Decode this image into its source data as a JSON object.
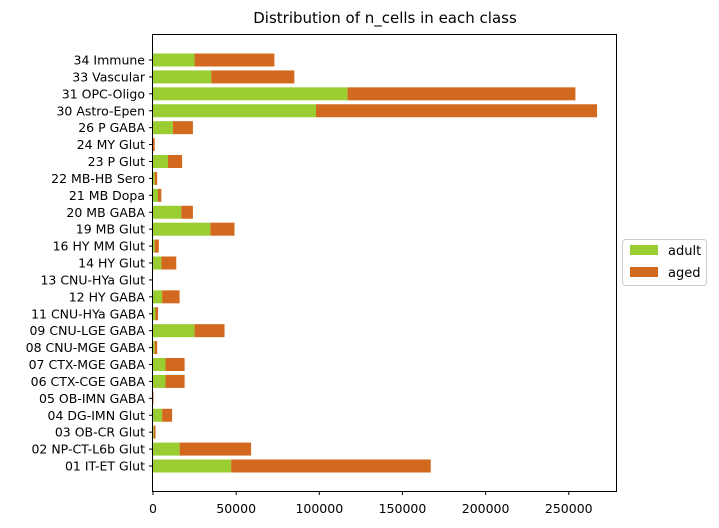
{
  "chart_data": {
    "type": "bar",
    "orientation": "horizontal",
    "stacked": true,
    "title": "Distribution of n_cells in each class",
    "xlabel": "",
    "ylabel": "",
    "xlim": [
      0,
      279000
    ],
    "xticks": [
      0,
      50000,
      100000,
      150000,
      200000,
      250000
    ],
    "grid": false,
    "legend_position": "right-outside",
    "categories": [
      "01 IT-ET Glut",
      "02 NP-CT-L6b Glut",
      "03 OB-CR Glut",
      "04 DG-IMN Glut",
      "05 OB-IMN GABA",
      "06 CTX-CGE GABA",
      "07 CTX-MGE GABA",
      "08 CNU-MGE GABA",
      "09 CNU-LGE GABA",
      "11 CNU-HYa GABA",
      "12 HY GABA",
      "13 CNU-HYa Glut",
      "14 HY Glut",
      "16 HY MM Glut",
      "19 MB Glut",
      "20 MB GABA",
      "21 MB Dopa",
      "22 MB-HB Sero",
      "23 P Glut",
      "24 MY Glut",
      "26 P GABA",
      "30 Astro-Epen",
      "31 OPC-Oligo",
      "33 Vascular",
      "34 Immune"
    ],
    "series": [
      {
        "name": "adult",
        "color": "#9acd32",
        "values": [
          47000,
          16000,
          500,
          5500,
          0,
          7500,
          7500,
          1000,
          25000,
          1500,
          5500,
          0,
          5000,
          1000,
          34500,
          17000,
          3000,
          1000,
          9000,
          0,
          12000,
          98000,
          117000,
          35000,
          25000
        ]
      },
      {
        "name": "aged",
        "color": "#d2691e",
        "values": [
          120000,
          43000,
          1000,
          6000,
          300,
          11500,
          11500,
          1500,
          18000,
          1500,
          10500,
          0,
          9000,
          2500,
          14500,
          7000,
          2000,
          1500,
          8500,
          1000,
          12000,
          169000,
          137000,
          50000,
          48000
        ]
      }
    ]
  }
}
